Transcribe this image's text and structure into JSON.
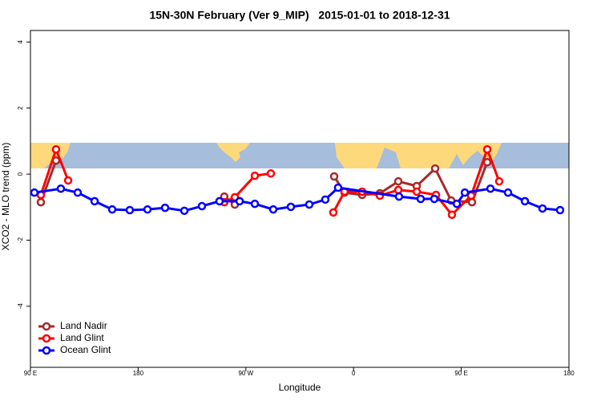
{
  "chart_data": {
    "type": "line",
    "title": "15N-30N February (Ver 9_MIP)   2015-01-01 to 2018-12-31",
    "xlabel": "Longitude",
    "ylabel": "XCO2 - MLO trend (ppm)",
    "xlim": [
      90,
      540
    ],
    "ylim": [
      -5.85,
      4.35
    ],
    "xticks": [
      {
        "value": 90,
        "label": "90 E"
      },
      180,
      {
        "value": 270,
        "label": "90 W"
      },
      {
        "value": 360,
        "label": "0"
      },
      {
        "value": 450,
        "label": "90 E"
      },
      {
        "value": 540,
        "label": "180"
      }
    ],
    "yticks": [
      -4,
      -2,
      0,
      2,
      4
    ],
    "legend": "bottom-left",
    "series": [
      {
        "name": "Land Nadir",
        "color": "#a52a2a",
        "x": [
          98.7,
          111.4,
          null,
          252,
          260.8,
          null,
          343.8,
          352.5,
          367.2,
          382,
          397.4,
          412.8,
          428.2,
          441.6,
          459,
          471.7
        ],
        "values": [
          -0.85,
          0.41,
          null,
          -0.68,
          -0.92,
          null,
          -0.07,
          -0.56,
          -0.63,
          -0.58,
          -0.22,
          -0.36,
          0.17,
          -0.8,
          -0.85,
          0.36
        ]
      },
      {
        "name": "Land Glint",
        "color": "#ff0000",
        "x": [
          98.7,
          111.4,
          121.5,
          null,
          252,
          260.8,
          277.5,
          290.9,
          null,
          343.1,
          352.5,
          367.2,
          382,
          397.4,
          412.8,
          428.9,
          442.2,
          458.3,
          471.7,
          481.7
        ],
        "values": [
          -0.63,
          0.75,
          -0.19,
          null,
          -0.85,
          -0.7,
          -0.05,
          0.02,
          null,
          -1.16,
          -0.53,
          -0.53,
          -0.65,
          -0.48,
          -0.53,
          -0.63,
          -1.23,
          -0.65,
          0.75,
          -0.22
        ]
      },
      {
        "name": "Ocean Glint",
        "color": "#0000ff",
        "x": [
          93.3,
          115.4,
          129.5,
          143.6,
          158.3,
          173,
          187.8,
          202.5,
          218.6,
          233.3,
          248,
          264.8,
          277.5,
          292.9,
          307.6,
          323,
          336.4,
          347.1,
          398,
          416.1,
          427.5,
          446.3,
          453,
          474.4,
          489.1,
          503.2,
          517.9,
          532.6
        ],
        "values": [
          -0.56,
          -0.44,
          -0.56,
          -0.82,
          -1.07,
          -1.09,
          -1.07,
          -1.02,
          -1.11,
          -0.97,
          -0.82,
          -0.82,
          -0.9,
          -1.07,
          -0.99,
          -0.92,
          -0.77,
          -0.41,
          -0.68,
          -0.75,
          -0.75,
          -0.9,
          -0.56,
          -0.44,
          -0.56,
          -0.82,
          -1.04,
          -1.09
        ]
      }
    ]
  }
}
